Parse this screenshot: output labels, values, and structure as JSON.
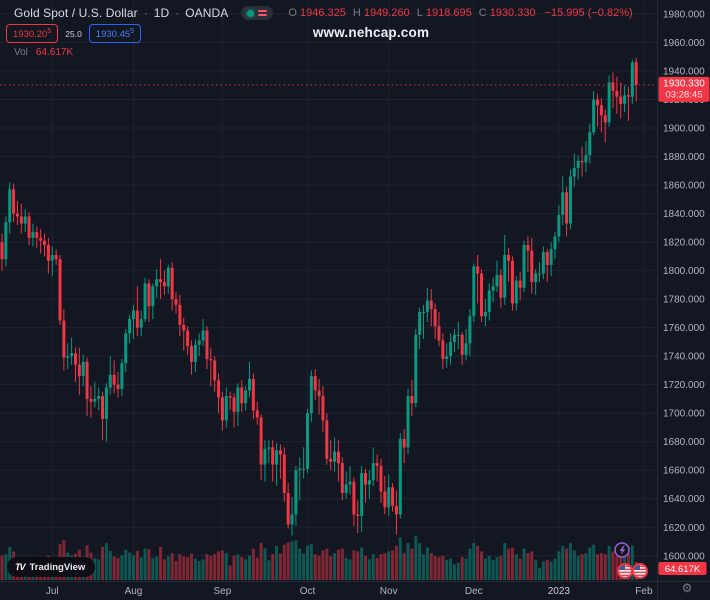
{
  "header": {
    "symbol_title": "Gold Spot / U.S. Dollar",
    "separator": "·",
    "timeframe": "1D",
    "exchange": "OANDA",
    "ohlc": {
      "o_label": "O",
      "o": "1946.325",
      "h_label": "H",
      "h": "1949.260",
      "l_label": "L",
      "l": "1918.695",
      "c_label": "C",
      "c": "1930.330",
      "change": "−15.995 (−0.82%)"
    },
    "bid_main": "1930.20",
    "bid_sup": "5",
    "spread": "25.0",
    "ask_main": "1930.45",
    "ask_sup": "5",
    "vol_label": "Vol",
    "vol_value": "64.617K"
  },
  "watermark": "www.nehcap.com",
  "logo": {
    "mark": "TV",
    "text": "TradingView"
  },
  "colors": {
    "background": "#131722",
    "grid": "#1e2330",
    "up": "#089981",
    "down": "#f23645",
    "axis_text": "#b2b5be",
    "axis_border": "#252a38",
    "label_red": "#f23645",
    "year_text": "#c7cbd6",
    "gear": "#787b86",
    "event_purple": "#9c5fd4"
  },
  "chart_data": {
    "type": "candlestick+volume",
    "symbol": "Gold Spot / U.S. Dollar (XAU/USD)",
    "exchange": "OANDA",
    "interval": "1D",
    "legend_ohlc": {
      "open": 1946.325,
      "high": 1949.26,
      "low": 1918.695,
      "close": 1930.33,
      "change": -15.995,
      "change_pct": -0.82
    },
    "price_line": {
      "value": 1930.33,
      "label": "1930.330",
      "countdown": "03:28:45"
    },
    "volume_axis_label": "64.617K",
    "last_volume": 64.617,
    "volume_unit": "K",
    "price_ticks": [
      1980,
      1960,
      1940,
      1920,
      1900,
      1880,
      1860,
      1840,
      1820,
      1800,
      1780,
      1760,
      1740,
      1720,
      1700,
      1680,
      1660,
      1640,
      1620,
      1600
    ],
    "price_axis_visible_range": [
      1593,
      1990
    ],
    "time_ticks": [
      {
        "label": "Jul",
        "index": 13
      },
      {
        "label": "Aug",
        "index": 34
      },
      {
        "label": "Sep",
        "index": 57
      },
      {
        "label": "Oct",
        "index": 79
      },
      {
        "label": "Nov",
        "index": 100
      },
      {
        "label": "Dec",
        "index": 122
      },
      {
        "label": "2023",
        "index": 144,
        "year": true
      },
      {
        "label": "Feb",
        "index": 166
      }
    ],
    "event_markers": [
      {
        "type": "economic-events-lightning"
      },
      {
        "type": "us-economic-event-flag"
      },
      {
        "type": "us-economic-event-flag"
      }
    ],
    "candles_format": [
      "open",
      "high",
      "low",
      "close",
      "volume_k"
    ],
    "candles": [
      [
        1820,
        1826,
        1800,
        1808,
        88
      ],
      [
        1808,
        1838,
        1803,
        1834,
        92
      ],
      [
        1834,
        1862,
        1826,
        1857,
        118
      ],
      [
        1857,
        1861,
        1834,
        1840,
        102
      ],
      [
        1840,
        1849,
        1832,
        1838,
        72
      ],
      [
        1838,
        1847,
        1826,
        1833,
        76
      ],
      [
        1833,
        1843,
        1827,
        1838,
        70
      ],
      [
        1838,
        1841,
        1818,
        1823,
        82
      ],
      [
        1823,
        1833,
        1817,
        1827,
        66
      ],
      [
        1827,
        1831,
        1816,
        1823,
        62
      ],
      [
        1823,
        1829,
        1812,
        1821,
        64
      ],
      [
        1821,
        1826,
        1810,
        1818,
        68
      ],
      [
        1818,
        1823,
        1798,
        1807,
        86
      ],
      [
        1807,
        1817,
        1796,
        1811,
        76
      ],
      [
        1811,
        1815,
        1804,
        1808,
        46
      ],
      [
        1808,
        1811,
        1762,
        1765,
        128
      ],
      [
        1765,
        1773,
        1730,
        1739,
        142
      ],
      [
        1739,
        1749,
        1731,
        1740,
        98
      ],
      [
        1740,
        1753,
        1734,
        1742,
        88
      ],
      [
        1742,
        1746,
        1722,
        1734,
        94
      ],
      [
        1734,
        1746,
        1713,
        1726,
        108
      ],
      [
        1726,
        1741,
        1719,
        1736,
        84
      ],
      [
        1736,
        1739,
        1698,
        1710,
        124
      ],
      [
        1710,
        1719,
        1697,
        1708,
        98
      ],
      [
        1708,
        1722,
        1704,
        1710,
        78
      ],
      [
        1710,
        1718,
        1702,
        1712,
        74
      ],
      [
        1712,
        1715,
        1681,
        1696,
        118
      ],
      [
        1696,
        1721,
        1680,
        1718,
        132
      ],
      [
        1718,
        1740,
        1713,
        1727,
        104
      ],
      [
        1727,
        1737,
        1714,
        1720,
        84
      ],
      [
        1720,
        1729,
        1711,
        1717,
        78
      ],
      [
        1717,
        1738,
        1712,
        1735,
        88
      ],
      [
        1735,
        1759,
        1729,
        1756,
        108
      ],
      [
        1756,
        1769,
        1749,
        1766,
        98
      ],
      [
        1766,
        1776,
        1752,
        1772,
        88
      ],
      [
        1772,
        1789,
        1754,
        1760,
        104
      ],
      [
        1760,
        1772,
        1754,
        1766,
        82
      ],
      [
        1766,
        1795,
        1764,
        1791,
        112
      ],
      [
        1791,
        1794,
        1764,
        1775,
        110
      ],
      [
        1775,
        1791,
        1766,
        1789,
        78
      ],
      [
        1789,
        1801,
        1781,
        1794,
        84
      ],
      [
        1794,
        1808,
        1780,
        1792,
        118
      ],
      [
        1792,
        1800,
        1783,
        1789,
        74
      ],
      [
        1789,
        1804,
        1784,
        1802,
        84
      ],
      [
        1802,
        1806,
        1772,
        1780,
        96
      ],
      [
        1780,
        1785,
        1770,
        1776,
        68
      ],
      [
        1776,
        1783,
        1754,
        1762,
        92
      ],
      [
        1762,
        1767,
        1744,
        1758,
        84
      ],
      [
        1758,
        1761,
        1741,
        1747,
        82
      ],
      [
        1747,
        1751,
        1727,
        1736,
        94
      ],
      [
        1736,
        1752,
        1729,
        1748,
        76
      ],
      [
        1748,
        1756,
        1740,
        1751,
        68
      ],
      [
        1751,
        1766,
        1747,
        1758,
        74
      ],
      [
        1758,
        1761,
        1731,
        1738,
        92
      ],
      [
        1738,
        1746,
        1719,
        1737,
        86
      ],
      [
        1737,
        1740,
        1715,
        1723,
        92
      ],
      [
        1723,
        1728,
        1700,
        1711,
        102
      ],
      [
        1711,
        1715,
        1688,
        1695,
        106
      ],
      [
        1695,
        1718,
        1690,
        1712,
        96
      ],
      [
        1712,
        1715,
        1702,
        1711,
        52
      ],
      [
        1711,
        1714,
        1690,
        1701,
        86
      ],
      [
        1701,
        1721,
        1691,
        1718,
        92
      ],
      [
        1718,
        1723,
        1701,
        1707,
        82
      ],
      [
        1707,
        1719,
        1702,
        1716,
        74
      ],
      [
        1716,
        1736,
        1711,
        1724,
        88
      ],
      [
        1724,
        1728,
        1696,
        1702,
        112
      ],
      [
        1702,
        1708,
        1692,
        1697,
        80
      ],
      [
        1697,
        1699,
        1653,
        1664,
        132
      ],
      [
        1664,
        1681,
        1652,
        1675,
        114
      ],
      [
        1675,
        1681,
        1665,
        1676,
        70
      ],
      [
        1676,
        1681,
        1652,
        1664,
        92
      ],
      [
        1664,
        1679,
        1649,
        1674,
        122
      ],
      [
        1674,
        1678,
        1654,
        1671,
        94
      ],
      [
        1671,
        1676,
        1638,
        1644,
        126
      ],
      [
        1644,
        1651,
        1619,
        1622,
        134
      ],
      [
        1622,
        1641,
        1614,
        1629,
        138
      ],
      [
        1629,
        1663,
        1621,
        1660,
        142
      ],
      [
        1660,
        1669,
        1639,
        1661,
        112
      ],
      [
        1661,
        1676,
        1654,
        1661,
        94
      ],
      [
        1661,
        1703,
        1658,
        1700,
        122
      ],
      [
        1700,
        1730,
        1694,
        1726,
        128
      ],
      [
        1726,
        1731,
        1709,
        1716,
        92
      ],
      [
        1716,
        1724,
        1699,
        1712,
        86
      ],
      [
        1712,
        1719,
        1687,
        1695,
        106
      ],
      [
        1695,
        1700,
        1664,
        1668,
        112
      ],
      [
        1668,
        1681,
        1660,
        1666,
        84
      ],
      [
        1666,
        1683,
        1659,
        1673,
        96
      ],
      [
        1673,
        1681,
        1652,
        1665,
        108
      ],
      [
        1665,
        1669,
        1639,
        1644,
        112
      ],
      [
        1644,
        1659,
        1640,
        1650,
        78
      ],
      [
        1650,
        1663,
        1643,
        1652,
        74
      ],
      [
        1652,
        1655,
        1621,
        1629,
        106
      ],
      [
        1629,
        1639,
        1616,
        1628,
        102
      ],
      [
        1628,
        1663,
        1617,
        1658,
        116
      ],
      [
        1658,
        1661,
        1637,
        1650,
        86
      ],
      [
        1650,
        1660,
        1640,
        1653,
        74
      ],
      [
        1653,
        1676,
        1649,
        1665,
        92
      ],
      [
        1665,
        1671,
        1652,
        1663,
        78
      ],
      [
        1663,
        1668,
        1637,
        1645,
        92
      ],
      [
        1645,
        1656,
        1629,
        1634,
        96
      ],
      [
        1634,
        1657,
        1628,
        1648,
        102
      ],
      [
        1648,
        1651,
        1631,
        1635,
        106
      ],
      [
        1635,
        1646,
        1615,
        1629,
        122
      ],
      [
        1629,
        1686,
        1626,
        1682,
        152
      ],
      [
        1682,
        1689,
        1665,
        1676,
        96
      ],
      [
        1676,
        1717,
        1671,
        1712,
        132
      ],
      [
        1712,
        1723,
        1698,
        1707,
        112
      ],
      [
        1707,
        1759,
        1704,
        1755,
        158
      ],
      [
        1755,
        1774,
        1745,
        1771,
        132
      ],
      [
        1771,
        1776,
        1752,
        1771,
        92
      ],
      [
        1771,
        1788,
        1764,
        1779,
        116
      ],
      [
        1779,
        1787,
        1761,
        1773,
        96
      ],
      [
        1773,
        1777,
        1752,
        1761,
        86
      ],
      [
        1761,
        1771,
        1747,
        1751,
        82
      ],
      [
        1751,
        1756,
        1731,
        1738,
        86
      ],
      [
        1738,
        1749,
        1732,
        1740,
        72
      ],
      [
        1740,
        1756,
        1734,
        1750,
        76
      ],
      [
        1750,
        1759,
        1743,
        1755,
        56
      ],
      [
        1755,
        1764,
        1745,
        1755,
        62
      ],
      [
        1755,
        1757,
        1734,
        1741,
        82
      ],
      [
        1741,
        1759,
        1737,
        1749,
        76
      ],
      [
        1749,
        1773,
        1740,
        1768,
        112
      ],
      [
        1768,
        1805,
        1764,
        1803,
        132
      ],
      [
        1803,
        1811,
        1777,
        1798,
        122
      ],
      [
        1798,
        1801,
        1764,
        1768,
        102
      ],
      [
        1768,
        1780,
        1761,
        1771,
        76
      ],
      [
        1771,
        1791,
        1765,
        1786,
        86
      ],
      [
        1786,
        1795,
        1778,
        1789,
        72
      ],
      [
        1789,
        1807,
        1785,
        1797,
        82
      ],
      [
        1797,
        1801,
        1774,
        1781,
        86
      ],
      [
        1781,
        1825,
        1776,
        1811,
        132
      ],
      [
        1811,
        1816,
        1792,
        1807,
        112
      ],
      [
        1807,
        1810,
        1772,
        1777,
        116
      ],
      [
        1777,
        1796,
        1772,
        1793,
        92
      ],
      [
        1793,
        1799,
        1779,
        1788,
        76
      ],
      [
        1788,
        1821,
        1785,
        1818,
        112
      ],
      [
        1818,
        1824,
        1799,
        1814,
        96
      ],
      [
        1814,
        1823,
        1784,
        1792,
        102
      ],
      [
        1792,
        1801,
        1783,
        1798,
        72
      ],
      [
        1798,
        1806,
        1792,
        1798,
        42
      ],
      [
        1798,
        1817,
        1794,
        1813,
        66
      ],
      [
        1813,
        1815,
        1792,
        1804,
        72
      ],
      [
        1804,
        1820,
        1796,
        1815,
        66
      ],
      [
        1815,
        1827,
        1808,
        1824,
        76
      ],
      [
        1824,
        1846,
        1820,
        1839,
        102
      ],
      [
        1839,
        1866,
        1832,
        1855,
        122
      ],
      [
        1855,
        1859,
        1824,
        1833,
        112
      ],
      [
        1833,
        1871,
        1829,
        1866,
        132
      ],
      [
        1866,
        1882,
        1859,
        1872,
        106
      ],
      [
        1872,
        1881,
        1864,
        1877,
        86
      ],
      [
        1877,
        1887,
        1866,
        1876,
        92
      ],
      [
        1876,
        1891,
        1869,
        1881,
        96
      ],
      [
        1881,
        1903,
        1875,
        1897,
        116
      ],
      [
        1897,
        1926,
        1895,
        1920,
        126
      ],
      [
        1920,
        1924,
        1901,
        1916,
        92
      ],
      [
        1916,
        1921,
        1897,
        1909,
        96
      ],
      [
        1909,
        1913,
        1890,
        1904,
        92
      ],
      [
        1904,
        1937,
        1901,
        1932,
        122
      ],
      [
        1932,
        1939,
        1914,
        1926,
        102
      ],
      [
        1926,
        1936,
        1910,
        1922,
        86
      ],
      [
        1922,
        1932,
        1907,
        1917,
        92
      ],
      [
        1917,
        1930,
        1911,
        1923,
        86
      ],
      [
        1923,
        1929,
        1905,
        1922,
        96
      ],
      [
        1922,
        1948,
        1917,
        1946,
        122
      ],
      [
        1946.325,
        1949.26,
        1918.695,
        1930.33,
        64.617
      ]
    ]
  }
}
